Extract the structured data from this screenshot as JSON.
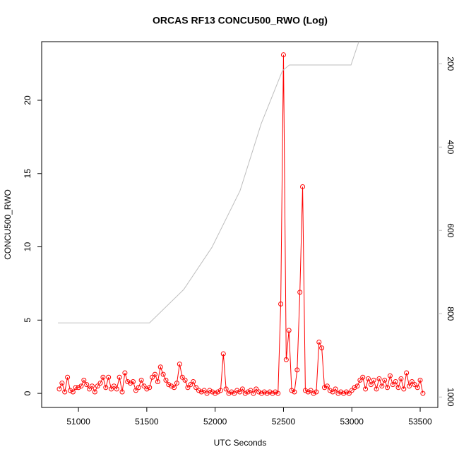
{
  "chart_data": {
    "type": "line",
    "title": "ORCAS RF13 CONCU500_RWO (Log)",
    "xlabel": "UTC Seconds",
    "ylabel": "CONCU500_RWO",
    "xlim": [
      50731,
      53629
    ],
    "xticks": [
      51000,
      51500,
      52000,
      52500,
      53000,
      53500
    ],
    "ylim": [
      -0.96,
      24.0
    ],
    "yticks": [
      0,
      5,
      10,
      15,
      20
    ],
    "y2lim": [
      1025,
      147
    ],
    "y2ticks": [
      200,
      400,
      600,
      800,
      1000
    ],
    "series": [
      {
        "color": "#ff0000",
        "x": [
          50860,
          50880,
          50900,
          50920,
          50940,
          50960,
          50980,
          51000,
          51020,
          51040,
          51060,
          51080,
          51100,
          51120,
          51140,
          51160,
          51180,
          51200,
          51220,
          51240,
          51260,
          51280,
          51300,
          51320,
          51340,
          51360,
          51380,
          51400,
          51420,
          51440,
          51460,
          51480,
          51500,
          51520,
          51540,
          51560,
          51580,
          51600,
          51620,
          51640,
          51660,
          51680,
          51700,
          51720,
          51740,
          51760,
          51780,
          51800,
          51820,
          51840,
          51860,
          51880,
          51900,
          51920,
          51940,
          51960,
          51980,
          52000,
          52020,
          52040,
          52060,
          52080,
          52100,
          52120,
          52140,
          52160,
          52180,
          52200,
          52220,
          52240,
          52260,
          52280,
          52300,
          52320,
          52340,
          52360,
          52380,
          52400,
          52420,
          52440,
          52460,
          52480,
          52500,
          52520,
          52540,
          52560,
          52580,
          52600,
          52620,
          52640,
          52660,
          52680,
          52700,
          52720,
          52740,
          52760,
          52780,
          52800,
          52820,
          52840,
          52860,
          52880,
          52900,
          52920,
          52940,
          52960,
          52980,
          53000,
          53020,
          53040,
          53060,
          53080,
          53100,
          53120,
          53140,
          53160,
          53180,
          53200,
          53220,
          53240,
          53260,
          53280,
          53300,
          53320,
          53340,
          53360,
          53380,
          53400,
          53420,
          53440,
          53460,
          53480,
          53500,
          53520
        ],
        "values": [
          0.3,
          0.7,
          0.1,
          1.1,
          0.2,
          0.1,
          0.4,
          0.4,
          0.5,
          0.9,
          0.6,
          0.3,
          0.5,
          0.1,
          0.5,
          0.7,
          1.1,
          0.4,
          1.1,
          0.3,
          0.5,
          0.3,
          1.1,
          0.1,
          1.4,
          0.8,
          0.7,
          0.8,
          0.2,
          0.4,
          0.9,
          0.5,
          0.3,
          0.4,
          1.1,
          1.3,
          0.8,
          1.8,
          1.3,
          0.9,
          0.6,
          0.5,
          0.4,
          0.7,
          2.0,
          1.1,
          0.9,
          0.4,
          0.6,
          0.8,
          0.4,
          0.2,
          0.1,
          0.2,
          0.0,
          0.2,
          0.1,
          0.0,
          0.1,
          0.2,
          2.7,
          0.3,
          0.0,
          0.1,
          0.0,
          0.2,
          0.1,
          0.3,
          0.0,
          0.1,
          0.2,
          0.0,
          0.3,
          0.1,
          0.0,
          0.1,
          0.0,
          0.1,
          0.0,
          0.1,
          0.0,
          6.1,
          23.1,
          2.3,
          4.3,
          0.2,
          0.1,
          1.6,
          6.9,
          14.1,
          0.2,
          0.1,
          0.2,
          0.0,
          0.1,
          3.5,
          3.1,
          0.4,
          0.5,
          0.2,
          0.1,
          0.3,
          0.0,
          0.1,
          0.0,
          0.1,
          0.0,
          0.2,
          0.4,
          0.5,
          0.9,
          1.1,
          0.3,
          1.0,
          0.6,
          0.9,
          0.3,
          1.0,
          0.5,
          0.9,
          0.4,
          1.2,
          0.6,
          0.8,
          0.4,
          1.0,
          0.3,
          1.4,
          0.5,
          0.8,
          0.6,
          0.4,
          0.9,
          0.0
        ],
        "markers": true
      },
      {
        "color": "#bebebe",
        "axis": "y2",
        "x": [
          50850,
          51520,
          51770,
          51976,
          52182,
          52337,
          52492,
          52543,
          52994,
          53051
        ],
        "values": [
          822,
          822,
          742,
          641,
          505,
          344,
          217,
          203,
          203,
          147
        ],
        "markers": false
      }
    ]
  }
}
